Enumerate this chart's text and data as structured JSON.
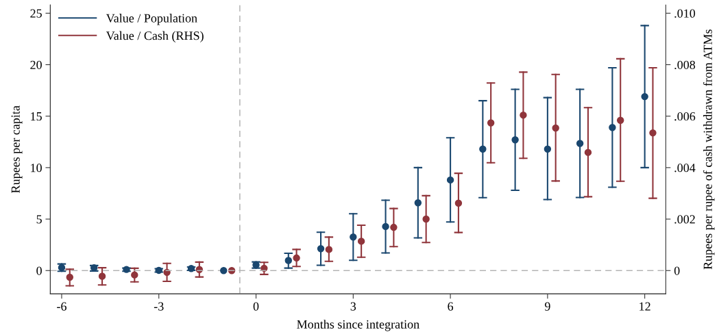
{
  "chart_data": {
    "type": "scatter",
    "xlabel": "Months since integration",
    "ylabel": "Rupees per capita",
    "y2label": "Rupees per rupee of cash withdrawn from ATMs",
    "xlim": [
      -6.35,
      12.65
    ],
    "xticks": [
      -6,
      -3,
      0,
      3,
      6,
      9,
      12
    ],
    "ylim": [
      -2.26,
      25.8
    ],
    "yticks": [
      0,
      5,
      10,
      15,
      20,
      25
    ],
    "y2lim": [
      -0.000904,
      0.01032
    ],
    "y2ticks": [
      {
        "value": 0,
        "label": "0"
      },
      {
        "value": 0.002,
        "label": ".002"
      },
      {
        "value": 0.004,
        "label": ".004"
      },
      {
        "value": 0.006,
        "label": ".006"
      },
      {
        "value": 0.008,
        "label": ".008"
      },
      {
        "value": 0.01,
        "label": ".010"
      }
    ],
    "legend": "top left",
    "grid": false,
    "marker": "circle",
    "ref_lines": [
      {
        "axis": "x",
        "value": -0.5,
        "color": "#b4b4b4",
        "line_style": "dashed"
      },
      {
        "axis": "y",
        "value": 0,
        "color": "#b4b4b4",
        "line_style": "dashed"
      }
    ],
    "series": [
      {
        "name": "Value / Population",
        "color": "#1a476f",
        "x": [
          -6,
          -5,
          -4,
          -3,
          -2,
          -1,
          0,
          1,
          2,
          3,
          4,
          5,
          6,
          7,
          8,
          9,
          10,
          11,
          12
        ],
        "values": [
          0.29,
          0.27,
          0.11,
          0.02,
          0.2,
          0,
          0.55,
          0.98,
          2.13,
          3.26,
          4.28,
          6.58,
          8.8,
          11.8,
          12.7,
          11.8,
          12.35,
          13.9,
          16.9
        ],
        "errors": [
          [
            -0.07,
            0.64
          ],
          [
            -0.04,
            0.49
          ],
          [
            -0.07,
            0.24
          ],
          [
            -0.15,
            0.18
          ],
          [
            0.02,
            0.35
          ],
          null,
          [
            0.24,
            0.84
          ],
          [
            0.24,
            1.68
          ],
          [
            0.51,
            3.72
          ],
          [
            1.0,
            5.52
          ],
          [
            1.71,
            6.83
          ],
          [
            3.17,
            10.0
          ],
          [
            4.72,
            12.9
          ],
          [
            7.08,
            16.5
          ],
          [
            7.8,
            17.6
          ],
          [
            6.9,
            16.8
          ],
          [
            7.1,
            17.6
          ],
          [
            8.1,
            19.7
          ],
          [
            10.0,
            23.8
          ]
        ]
      },
      {
        "name": "Value / Cash (RHS)",
        "color": "#90353b",
        "axis": "y2",
        "x": [
          -5.75,
          -4.75,
          -3.75,
          -2.75,
          -1.75,
          -0.75,
          0.25,
          1.25,
          2.25,
          3.25,
          4.25,
          5.25,
          6.25,
          7.25,
          8.25,
          9.25,
          10.25,
          11.25,
          12.25
        ],
        "values": [
          -0.00026,
          -0.00022,
          -0.00017,
          -7e-05,
          4e-05,
          0,
          9e-05,
          0.00049,
          0.00082,
          0.00114,
          0.00168,
          0.002,
          0.00262,
          0.00574,
          0.00604,
          0.00554,
          0.00459,
          0.00584,
          0.00535
        ],
        "errors": [
          [
            -0.00059,
            5e-05
          ],
          [
            -0.00056,
            0.00011
          ],
          [
            -0.00044,
            9e-05
          ],
          [
            -0.00042,
            0.00028
          ],
          [
            -0.00025,
            0.00033
          ],
          null,
          [
            -0.00015,
            0.00032
          ],
          [
            0.00016,
            0.00082
          ],
          [
            0.00036,
            0.0013
          ],
          [
            0.00052,
            0.00176
          ],
          [
            0.00093,
            0.00241
          ],
          [
            0.00109,
            0.00291
          ],
          [
            0.00148,
            0.00378
          ],
          [
            0.00419,
            0.00729
          ],
          [
            0.00436,
            0.00771
          ],
          [
            0.00348,
            0.00762
          ],
          [
            0.00287,
            0.00633
          ],
          [
            0.00347,
            0.00823
          ],
          [
            0.00281,
            0.00788
          ]
        ]
      }
    ]
  }
}
